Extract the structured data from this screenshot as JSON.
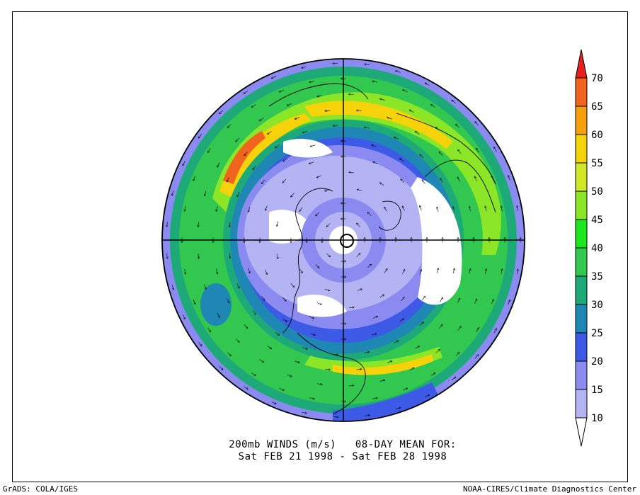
{
  "title": {
    "line1": "200mb WINDS (m/s)   08-DAY MEAN FOR:",
    "line2": "Sat FEB 21 1998 - Sat FEB 28 1998"
  },
  "footer": {
    "left": "GrADS: COLA/IGES",
    "right": "NOAA-CIRES/Climate Diagnostics Center"
  },
  "colorbar": {
    "levels": [
      "10",
      "15",
      "20",
      "25",
      "30",
      "35",
      "40",
      "45",
      "50",
      "55",
      "60",
      "65",
      "70"
    ],
    "colors": [
      "#ffffff",
      "#b4b4f5",
      "#8a8af0",
      "#3c5ae6",
      "#1e87b4",
      "#1eaa78",
      "#32c850",
      "#1ee61e",
      "#8ce628",
      "#d2e628",
      "#f5d20a",
      "#f5a00a",
      "#f0641e",
      "#e61e1e"
    ]
  },
  "map": {
    "projection": "north-polar-stereographic",
    "variable": "200mb wind speed (m/s) with wind vectors"
  }
}
